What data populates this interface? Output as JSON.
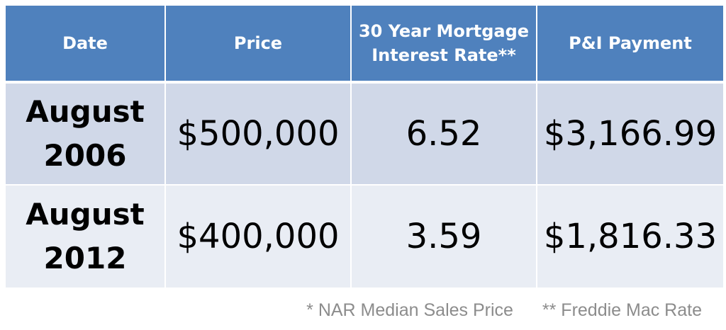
{
  "colors": {
    "header_bg": "#4f81bd",
    "row_odd_bg": "#d0d8e8",
    "row_even_bg": "#e9edf4",
    "footnote_text": "#8c8c8c"
  },
  "chart_data": {
    "type": "table",
    "columns": [
      {
        "line1": "Date",
        "line2": ""
      },
      {
        "line1": "Price",
        "line2": ""
      },
      {
        "line1": "30 Year Mortgage",
        "line2": "Interest Rate**"
      },
      {
        "line1": "P&I Payment",
        "line2": ""
      }
    ],
    "rows": [
      {
        "date_line1": "August",
        "date_line2": "2006",
        "price": "$500,000",
        "rate": "6.52",
        "payment": "$3,166.99"
      },
      {
        "date_line1": "August",
        "date_line2": "2012",
        "price": "$400,000",
        "rate": "3.59",
        "payment": "$1,816.33"
      }
    ]
  },
  "footnotes": {
    "price_source": "* NAR Median Sales Price",
    "rate_source": "** Freddie Mac Rate"
  }
}
